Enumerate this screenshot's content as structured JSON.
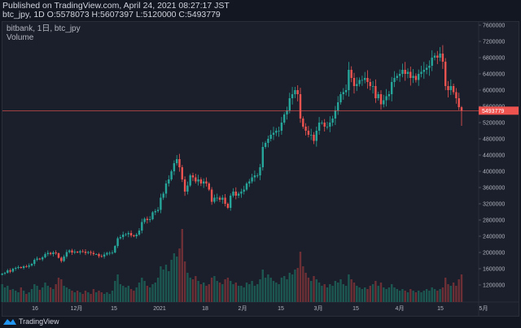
{
  "header": {
    "published": "Published on TradingView.com, April 24, 2021 08:27:17 JST",
    "ohlc": "btc_jpy, 1D O:5578073 H:5607397 L:5120000 C:5493779"
  },
  "legend": {
    "symbol": "bitbank, 1日, btc_jpy",
    "volume": "Volume"
  },
  "footer": {
    "brand": "TradingView"
  },
  "colors": {
    "up": "#26a69a",
    "down": "#ef5350",
    "bg": "#1b1f2b",
    "price_line": "#ef5350"
  },
  "chart_data": {
    "type": "candlestick",
    "first_date": "2020-11-04",
    "last_date": "2021-04-24",
    "price_ticks": [
      7600000,
      7200000,
      6800000,
      6400000,
      6000000,
      5600000,
      5200000,
      4800000,
      4400000,
      4000000,
      3600000,
      3200000,
      2800000,
      2400000,
      2000000,
      1600000,
      1200000
    ],
    "x_ticks": [
      "16",
      "12月",
      "15",
      "2021",
      "18",
      "2月",
      "15",
      "3月",
      "15",
      "4月",
      "15",
      "5月"
    ],
    "current_price": "5493779",
    "last_candle": {
      "open": 5578073,
      "high": 5607397,
      "low": 5120000,
      "close": 5493779
    },
    "first_open": 1450000,
    "closes": [
      1480000,
      1500000,
      1560000,
      1530000,
      1600000,
      1620000,
      1640000,
      1620000,
      1660000,
      1650000,
      1680000,
      1720000,
      1820000,
      1850000,
      1830000,
      1880000,
      1960000,
      1990000,
      1960000,
      2000000,
      1980000,
      1870000,
      1790000,
      1900000,
      2010000,
      2050000,
      2000000,
      2020000,
      2000000,
      2030000,
      2020000,
      1990000,
      2010000,
      1990000,
      1960000,
      1960000,
      1910000,
      1900000,
      1950000,
      1990000,
      1990000,
      2000000,
      2160000,
      2350000,
      2380000,
      2440000,
      2450000,
      2480000,
      2420000,
      2400000,
      2440000,
      2540000,
      2750000,
      2830000,
      2800000,
      2820000,
      2990000,
      3020000,
      3050000,
      3350000,
      3450000,
      3700000,
      3800000,
      4000000,
      4200000,
      4300000,
      4100000,
      3800000,
      3500000,
      3650000,
      3900000,
      3850000,
      3750000,
      3800000,
      3700000,
      3750000,
      3700000,
      3550000,
      3250000,
      3350000,
      3350000,
      3300000,
      3350000,
      3200000,
      3100000,
      3400000,
      3500000,
      3400000,
      3450000,
      3500000,
      3550000,
      3700000,
      3750000,
      3850000,
      3900000,
      3900000,
      4100000,
      4600000,
      4700000,
      4800000,
      4900000,
      4950000,
      5000000,
      5000000,
      5200000,
      5400000,
      5500000,
      5800000,
      5900000,
      6000000,
      5900000,
      5300000,
      5100000,
      5000000,
      4900000,
      4900000,
      4750000,
      5000000,
      5200000,
      5200000,
      5100000,
      5100000,
      5200000,
      5300000,
      5500000,
      5700000,
      5900000,
      5950000,
      6000000,
      6500000,
      6300000,
      6100000,
      6150000,
      6250000,
      6250000,
      6300000,
      6200000,
      6100000,
      6100000,
      5800000,
      5900000,
      5650000,
      5750000,
      5850000,
      5900000,
      6200000,
      6300000,
      6350000,
      6400000,
      6500000,
      6400000,
      6450000,
      6300000,
      6350000,
      6250000,
      6400000,
      6450000,
      6500000,
      6550000,
      6600000,
      6800000,
      6850000,
      6800000,
      6900000,
      6700000,
      6100000,
      6000000,
      6100000,
      5950000,
      5800000,
      5580000,
      5493779
    ],
    "volumes": [
      22,
      18,
      20,
      15,
      16,
      14,
      12,
      18,
      14,
      10,
      12,
      16,
      22,
      20,
      15,
      18,
      24,
      20,
      18,
      16,
      22,
      30,
      28,
      20,
      18,
      16,
      14,
      12,
      14,
      12,
      10,
      14,
      12,
      10,
      16,
      12,
      14,
      12,
      10,
      12,
      10,
      14,
      26,
      34,
      22,
      20,
      18,
      20,
      16,
      14,
      18,
      24,
      30,
      26,
      20,
      18,
      22,
      24,
      30,
      44,
      40,
      46,
      38,
      52,
      60,
      56,
      66,
      90,
      50,
      36,
      30,
      28,
      32,
      26,
      22,
      24,
      20,
      22,
      30,
      32,
      26,
      24,
      22,
      28,
      30,
      26,
      22,
      24,
      20,
      20,
      18,
      24,
      22,
      26,
      20,
      22,
      28,
      40,
      30,
      34,
      30,
      26,
      24,
      22,
      30,
      32,
      28,
      36,
      34,
      40,
      42,
      62,
      44,
      36,
      30,
      26,
      32,
      28,
      24,
      20,
      22,
      18,
      22,
      20,
      26,
      24,
      28,
      22,
      20,
      34,
      28,
      24,
      20,
      18,
      16,
      18,
      16,
      20,
      22,
      26,
      20,
      24,
      18,
      16,
      18,
      22,
      18,
      16,
      14,
      16,
      14,
      12,
      16,
      14,
      12,
      14,
      12,
      14,
      16,
      14,
      18,
      16,
      14,
      16,
      18,
      30,
      22,
      20,
      24,
      20,
      28,
      34
    ]
  }
}
